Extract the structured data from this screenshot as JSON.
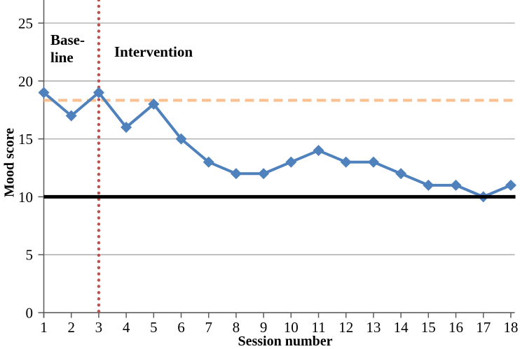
{
  "chart_data": {
    "type": "line",
    "title": "",
    "xlabel": "Session number",
    "ylabel": "Mood score",
    "x": [
      1,
      2,
      3,
      4,
      5,
      6,
      7,
      8,
      9,
      10,
      11,
      12,
      13,
      14,
      15,
      16,
      17,
      18
    ],
    "series": [
      {
        "name": "Mood score",
        "color": "#4F81BD",
        "marker": "diamond",
        "values": [
          19,
          17,
          19,
          16,
          18,
          15,
          13,
          12,
          12,
          13,
          14,
          13,
          13,
          12,
          11,
          11,
          10,
          11
        ]
      }
    ],
    "yticks": [
      0,
      5,
      10,
      15,
      20,
      25
    ],
    "ylim": [
      0,
      27
    ],
    "xlim": [
      1,
      18
    ],
    "grid": "horizontal",
    "legend": "none",
    "reference_lines": [
      {
        "id": "baseline-mean-line",
        "orientation": "horizontal",
        "value": 18.33,
        "style": "dashed",
        "color": "#FAC090"
      },
      {
        "id": "phase-change-line",
        "orientation": "vertical",
        "value": 3,
        "style": "dotted",
        "color": "#C0504D"
      },
      {
        "id": "criterion-line",
        "orientation": "horizontal",
        "value": 10,
        "style": "solid",
        "color": "#000000"
      }
    ],
    "annotations": [
      {
        "id": "baseline-phase-label",
        "lines": [
          "Base-",
          "line"
        ]
      },
      {
        "id": "intervention-phase-label",
        "lines": [
          "Intervention"
        ]
      }
    ],
    "axis_color": "#595959",
    "gridline_color": "#A6A6A6",
    "text_color": "#000000"
  }
}
